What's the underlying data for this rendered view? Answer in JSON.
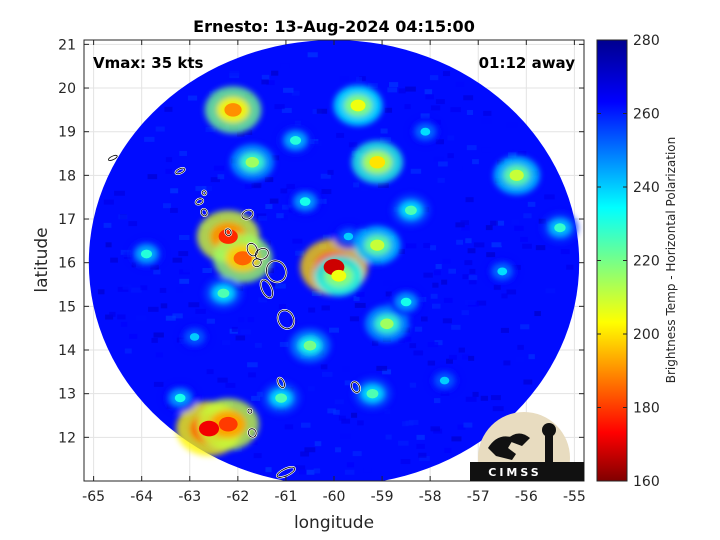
{
  "chart_data": {
    "type": "heatmap",
    "title": "Ernesto: 13-Aug-2024 04:15:00",
    "xlabel": "longitude",
    "ylabel": "latitude",
    "xlim": [
      -65.2,
      -54.8
    ],
    "ylim": [
      11,
      21.1
    ],
    "xticks": [
      -65,
      -64,
      -63,
      -62,
      -61,
      -60,
      -59,
      -58,
      -57,
      -56,
      -55
    ],
    "yticks": [
      12,
      13,
      14,
      15,
      16,
      17,
      18,
      19,
      20,
      21
    ],
    "grid": true,
    "annotation_left": "Vmax: 35 kts",
    "annotation_right": "01:12 away",
    "colorbar": {
      "label": "Brightness Temp - Horizontal Polarization",
      "range": [
        160,
        280
      ],
      "ticks": [
        160,
        180,
        200,
        220,
        240,
        260,
        280
      ],
      "colormap": "jet"
    },
    "swath": {
      "center_lon": -60,
      "center_lat": 16,
      "radius_lon": 5.1,
      "radius_lat": 5.1
    },
    "background_value": 262,
    "features": [
      {
        "lon": -60.0,
        "lat": 15.9,
        "value": 168
      },
      {
        "lon": -59.9,
        "lat": 15.7,
        "value": 205
      },
      {
        "lon": -59.7,
        "lat": 16.6,
        "value": 240
      },
      {
        "lon": -59.1,
        "lat": 16.4,
        "value": 210
      },
      {
        "lon": -58.9,
        "lat": 14.6,
        "value": 215
      },
      {
        "lon": -58.5,
        "lat": 15.1,
        "value": 232
      },
      {
        "lon": -58.4,
        "lat": 17.2,
        "value": 225
      },
      {
        "lon": -62.6,
        "lat": 12.2,
        "value": 172
      },
      {
        "lon": -62.2,
        "lat": 12.3,
        "value": 180
      },
      {
        "lon": -62.2,
        "lat": 16.6,
        "value": 178
      },
      {
        "lon": -61.9,
        "lat": 16.1,
        "value": 185
      },
      {
        "lon": -62.1,
        "lat": 19.5,
        "value": 190
      },
      {
        "lon": -59.5,
        "lat": 19.6,
        "value": 205
      },
      {
        "lon": -59.1,
        "lat": 18.3,
        "value": 200
      },
      {
        "lon": -60.5,
        "lat": 14.1,
        "value": 220
      },
      {
        "lon": -60.8,
        "lat": 18.8,
        "value": 230
      },
      {
        "lon": -61.7,
        "lat": 18.3,
        "value": 215
      },
      {
        "lon": -56.2,
        "lat": 18.0,
        "value": 210
      },
      {
        "lon": -56.5,
        "lat": 15.8,
        "value": 238
      },
      {
        "lon": -63.9,
        "lat": 16.2,
        "value": 230
      },
      {
        "lon": -63.2,
        "lat": 12.9,
        "value": 232
      },
      {
        "lon": -59.2,
        "lat": 13.0,
        "value": 225
      },
      {
        "lon": -57.7,
        "lat": 13.3,
        "value": 240
      },
      {
        "lon": -61.1,
        "lat": 12.9,
        "value": 225
      },
      {
        "lon": -62.3,
        "lat": 15.3,
        "value": 225
      },
      {
        "lon": -58.1,
        "lat": 19.0,
        "value": 238
      },
      {
        "lon": -55.3,
        "lat": 16.8,
        "value": 228
      },
      {
        "lon": -62.9,
        "lat": 14.3,
        "value": 240
      },
      {
        "lon": -60.6,
        "lat": 17.4,
        "value": 232
      }
    ]
  },
  "logo": {
    "text": "CIMSS"
  }
}
